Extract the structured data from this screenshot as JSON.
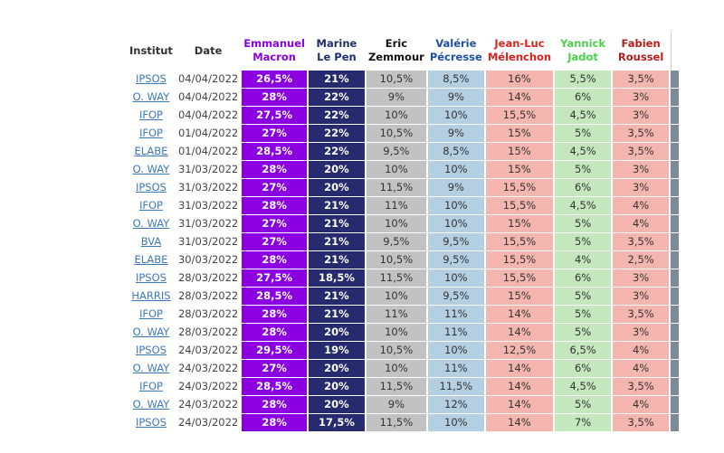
{
  "table": {
    "headers": [
      [
        "Institut"
      ],
      [
        "Date"
      ],
      [
        "Emmanuel",
        "Macron"
      ],
      [
        "Marine",
        "Le Pen"
      ],
      [
        "Eric",
        "Zemmour"
      ],
      [
        "Valérie",
        "Pécresse"
      ],
      [
        "Jean-Luc",
        "Mélenchon"
      ],
      [
        "Yannick",
        "Jadot"
      ],
      [
        "Fabien",
        "Roussel"
      ]
    ],
    "header_colors": [
      "#333333",
      "#333333",
      "#8a00e0",
      "#1e2d6e",
      "#111111",
      "#1f4fa0",
      "#e0201b",
      "#4bcf4b",
      "#b01e1e"
    ],
    "cell_colors": [
      null,
      null,
      "#8a00e0",
      "#262a6e",
      "#c2c2c2",
      "#b5cfe2",
      "#f5b5af",
      "#c4e7bd",
      "#f5b5af"
    ],
    "rows": [
      [
        "IPSOS",
        "04/04/2022",
        "26,5%",
        "21%",
        "10,5%",
        "8,5%",
        "16%",
        "5,5%",
        "3,5%"
      ],
      [
        "O. WAY",
        "04/04/2022",
        "28%",
        "22%",
        "9%",
        "9%",
        "14%",
        "6%",
        "3%"
      ],
      [
        "IFOP",
        "04/04/2022",
        "27,5%",
        "22%",
        "10%",
        "10%",
        "15,5%",
        "4,5%",
        "3%"
      ],
      [
        "IFOP",
        "01/04/2022",
        "27%",
        "22%",
        "10,5%",
        "9%",
        "15%",
        "5%",
        "3,5%"
      ],
      [
        "ELABE",
        "01/04/2022",
        "28,5%",
        "22%",
        "9,5%",
        "8,5%",
        "15%",
        "4,5%",
        "3,5%"
      ],
      [
        "O. WAY",
        "31/03/2022",
        "28%",
        "20%",
        "10%",
        "10%",
        "15%",
        "5%",
        "3%"
      ],
      [
        "IPSOS",
        "31/03/2022",
        "27%",
        "20%",
        "11,5%",
        "9%",
        "15,5%",
        "6%",
        "3%"
      ],
      [
        "IFOP",
        "31/03/2022",
        "28%",
        "21%",
        "11%",
        "10%",
        "15,5%",
        "4,5%",
        "4%"
      ],
      [
        "O. WAY",
        "31/03/2022",
        "27%",
        "21%",
        "10%",
        "10%",
        "15%",
        "5%",
        "4%"
      ],
      [
        "BVA",
        "31/03/2022",
        "27%",
        "21%",
        "9,5%",
        "9,5%",
        "15,5%",
        "5%",
        "3,5%"
      ],
      [
        "ELABE",
        "30/03/2022",
        "28%",
        "21%",
        "10,5%",
        "9,5%",
        "15,5%",
        "4%",
        "2,5%"
      ],
      [
        "IPSOS",
        "28/03/2022",
        "27,5%",
        "18,5%",
        "11,5%",
        "10%",
        "15,5%",
        "6%",
        "3%"
      ],
      [
        "HARRIS",
        "28/03/2022",
        "28,5%",
        "21%",
        "10%",
        "9,5%",
        "15%",
        "5%",
        "3%"
      ],
      [
        "IFOP",
        "28/03/2022",
        "28%",
        "21%",
        "11%",
        "11%",
        "14%",
        "5%",
        "3,5%"
      ],
      [
        "O. WAY",
        "28/03/2022",
        "28%",
        "20%",
        "10%",
        "11%",
        "14%",
        "5%",
        "3%"
      ],
      [
        "IPSOS",
        "24/03/2022",
        "29,5%",
        "19%",
        "10,5%",
        "10%",
        "12,5%",
        "6,5%",
        "4%"
      ],
      [
        "O. WAY",
        "24/03/2022",
        "27%",
        "20%",
        "10%",
        "11%",
        "14%",
        "6%",
        "4%"
      ],
      [
        "IFOP",
        "24/03/2022",
        "28,5%",
        "20%",
        "11,5%",
        "11,5%",
        "14%",
        "4,5%",
        "3,5%"
      ],
      [
        "O. WAY",
        "24/03/2022",
        "28%",
        "20%",
        "9%",
        "12%",
        "14%",
        "5%",
        "4%"
      ],
      [
        "IPSOS",
        "24/03/2022",
        "28%",
        "17,5%",
        "11,5%",
        "10%",
        "14%",
        "7%",
        "3,5%"
      ]
    ]
  }
}
